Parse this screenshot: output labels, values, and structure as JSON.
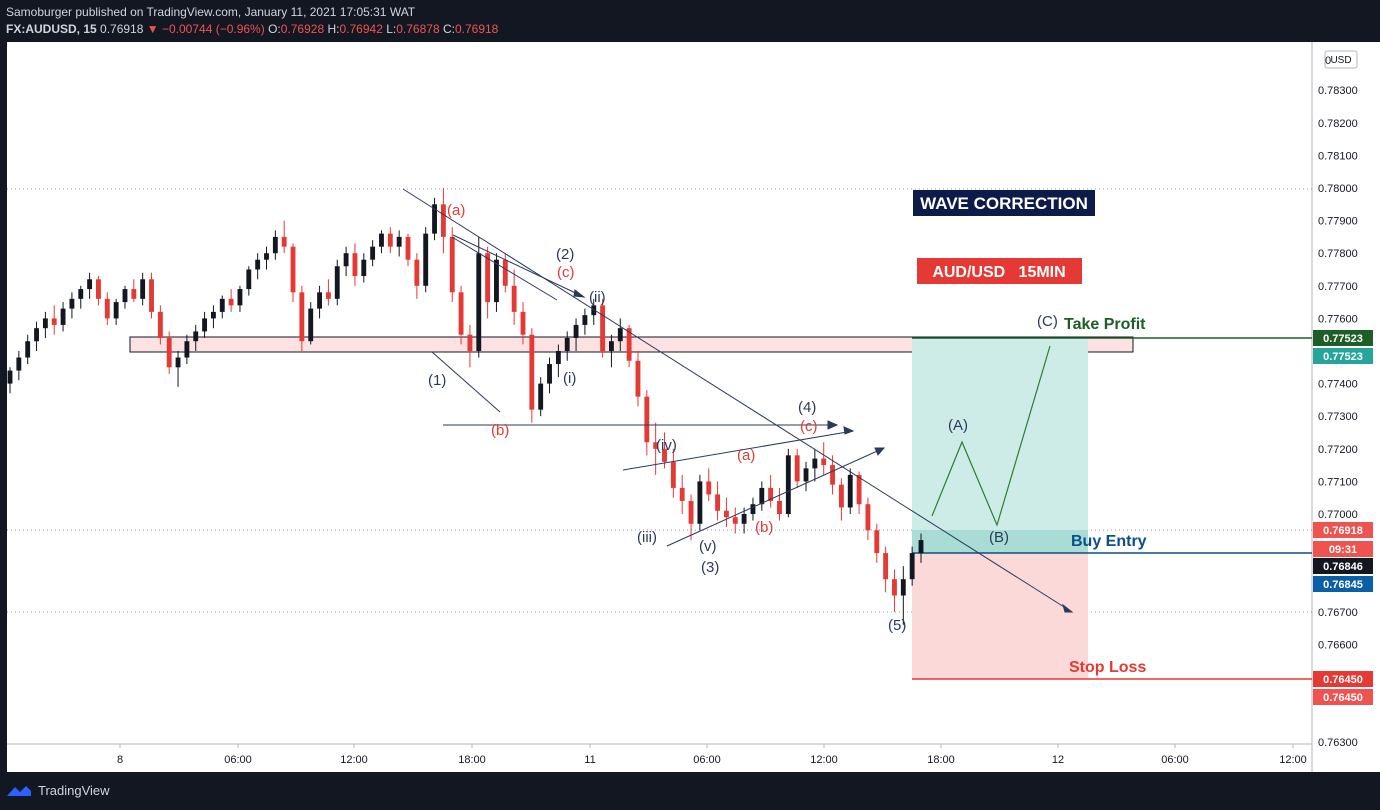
{
  "header": {
    "publisher": "Samoburger published on TradingView.com, January 11, 2021 17:05:31 WAT",
    "symbol": "FX:AUDUSD, 15",
    "last": "0.76918",
    "change": "▼ −0.00744 (−0.96%)",
    "o_label": "O:",
    "o": "0.76928",
    "h_label": "H:",
    "h": "0.76942",
    "l_label": "L:",
    "l": "0.76878",
    "c_label": "C:",
    "c": "0.76918"
  },
  "footer": {
    "brand": "TradingView"
  },
  "labels": {
    "title": "WAVE CORRECTION",
    "pair": "AUD/USD   15MIN",
    "take_profit": "Take Profit",
    "buy_entry": "Buy Entry",
    "stop_loss": "Stop Loss",
    "currency": "USD"
  },
  "chart_data": {
    "type": "candlestick",
    "symbol": "FX:AUDUSD",
    "timeframe": "15",
    "x_ticks": [
      "8",
      "06:00",
      "12:00",
      "18:00",
      "11",
      "06:00",
      "12:00",
      "18:00",
      "12",
      "06:00",
      "12:00"
    ],
    "y_ticks": [
      "0.78300",
      "0.78200",
      "0.78100",
      "0.78000",
      "0.77900",
      "0.77800",
      "0.77700",
      "0.77600",
      "0.77400",
      "0.77300",
      "0.77200",
      "0.77100",
      "0.77000",
      "0.76700",
      "0.76600",
      "0.76500",
      "0.76300"
    ],
    "ylim": [
      0.7625,
      0.7845
    ],
    "levels": {
      "take_profit": 0.77523,
      "entry": 0.76846,
      "stop_loss": 0.7645,
      "last": 0.76918
    },
    "axis_badges": [
      {
        "text": "0.77523",
        "color": "#1e5d25"
      },
      {
        "text": "0.77523",
        "color": "#26a69a"
      },
      {
        "text": "0.76918",
        "color": "#ef5350"
      },
      {
        "text": "09:31",
        "color": "#ef5350"
      },
      {
        "text": "0.76846",
        "color": "#131722"
      },
      {
        "text": "0.76845",
        "color": "#0b5fa5"
      },
      {
        "text": "0.76450",
        "color": "#e53935"
      },
      {
        "text": "0.76450",
        "color": "#ef5350"
      }
    ],
    "wave_labels": [
      {
        "text": "(a)",
        "color": "#e53935"
      },
      {
        "text": "(2)",
        "color": "#2a3a5c"
      },
      {
        "text": "(c)",
        "color": "#e53935"
      },
      {
        "text": "(ii)",
        "color": "#2a3a5c"
      },
      {
        "text": "(1)",
        "color": "#2a3a5c"
      },
      {
        "text": "(i)",
        "color": "#2a3a5c"
      },
      {
        "text": "(b)",
        "color": "#e53935"
      },
      {
        "text": "(4)",
        "color": "#2a3a5c"
      },
      {
        "text": "(c)",
        "color": "#e53935"
      },
      {
        "text": "(iv)",
        "color": "#2a3a5c"
      },
      {
        "text": "(a)",
        "color": "#e53935"
      },
      {
        "text": "(iii)",
        "color": "#2a3a5c"
      },
      {
        "text": "(v)",
        "color": "#2a3a5c"
      },
      {
        "text": "(b)",
        "color": "#e53935"
      },
      {
        "text": "(3)",
        "color": "#2a3a5c"
      },
      {
        "text": "(5)",
        "color": "#2a3a5c"
      },
      {
        "text": "(A)",
        "color": "#2a3a5c"
      },
      {
        "text": "(B)",
        "color": "#2a3a5c"
      },
      {
        "text": "(C)",
        "color": "#2a3a5c"
      }
    ],
    "candles": [
      [
        0.774,
        0.7745,
        0.7737,
        0.7744
      ],
      [
        0.7744,
        0.775,
        0.7741,
        0.7748
      ],
      [
        0.7748,
        0.7755,
        0.7746,
        0.7753
      ],
      [
        0.7753,
        0.7759,
        0.775,
        0.7757
      ],
      [
        0.7757,
        0.7762,
        0.7754,
        0.776
      ],
      [
        0.776,
        0.7764,
        0.7755,
        0.7758
      ],
      [
        0.7758,
        0.7765,
        0.7756,
        0.7763
      ],
      [
        0.7763,
        0.7768,
        0.776,
        0.7766
      ],
      [
        0.7766,
        0.777,
        0.7763,
        0.7769
      ],
      [
        0.7769,
        0.7774,
        0.7766,
        0.7772
      ],
      [
        0.7772,
        0.7773,
        0.7764,
        0.7766
      ],
      [
        0.7766,
        0.7768,
        0.7758,
        0.776
      ],
      [
        0.776,
        0.7766,
        0.7758,
        0.7765
      ],
      [
        0.7765,
        0.777,
        0.7763,
        0.7769
      ],
      [
        0.7769,
        0.7772,
        0.7765,
        0.7766
      ],
      [
        0.7766,
        0.7774,
        0.7764,
        0.7772
      ],
      [
        0.7772,
        0.7774,
        0.776,
        0.7762
      ],
      [
        0.7762,
        0.7764,
        0.7752,
        0.7754
      ],
      [
        0.7754,
        0.7756,
        0.7743,
        0.7745
      ],
      [
        0.7745,
        0.775,
        0.7739,
        0.7748
      ],
      [
        0.7748,
        0.7755,
        0.7746,
        0.7753
      ],
      [
        0.7753,
        0.7758,
        0.775,
        0.7756
      ],
      [
        0.7756,
        0.7762,
        0.7754,
        0.776
      ],
      [
        0.776,
        0.7764,
        0.7757,
        0.7762
      ],
      [
        0.7762,
        0.7767,
        0.776,
        0.7766
      ],
      [
        0.7766,
        0.7769,
        0.7762,
        0.7764
      ],
      [
        0.7764,
        0.777,
        0.7762,
        0.7769
      ],
      [
        0.7769,
        0.7776,
        0.7767,
        0.7775
      ],
      [
        0.7775,
        0.778,
        0.7772,
        0.7778
      ],
      [
        0.7778,
        0.7782,
        0.7775,
        0.778
      ],
      [
        0.778,
        0.7787,
        0.7778,
        0.7785
      ],
      [
        0.7785,
        0.779,
        0.778,
        0.7782
      ],
      [
        0.7782,
        0.7783,
        0.7765,
        0.7768
      ],
      [
        0.7768,
        0.777,
        0.775,
        0.7753
      ],
      [
        0.7753,
        0.7765,
        0.7752,
        0.7763
      ],
      [
        0.7763,
        0.777,
        0.776,
        0.7768
      ],
      [
        0.7768,
        0.7772,
        0.7764,
        0.7766
      ],
      [
        0.7766,
        0.7778,
        0.7764,
        0.7776
      ],
      [
        0.7776,
        0.7782,
        0.7773,
        0.778
      ],
      [
        0.778,
        0.7783,
        0.777,
        0.7773
      ],
      [
        0.7773,
        0.778,
        0.7771,
        0.7778
      ],
      [
        0.7778,
        0.7784,
        0.7776,
        0.7782
      ],
      [
        0.7782,
        0.7787,
        0.778,
        0.7786
      ],
      [
        0.7786,
        0.7788,
        0.778,
        0.7782
      ],
      [
        0.7782,
        0.7787,
        0.7779,
        0.7785
      ],
      [
        0.7785,
        0.7786,
        0.7776,
        0.7778
      ],
      [
        0.7778,
        0.778,
        0.7766,
        0.777
      ],
      [
        0.777,
        0.7788,
        0.7768,
        0.7786
      ],
      [
        0.7786,
        0.7797,
        0.7784,
        0.7795
      ],
      [
        0.7795,
        0.78,
        0.778,
        0.7785
      ],
      [
        0.7785,
        0.7788,
        0.7765,
        0.7768
      ],
      [
        0.7768,
        0.777,
        0.7752,
        0.7755
      ],
      [
        0.7755,
        0.7758,
        0.7745,
        0.775
      ],
      [
        0.775,
        0.7785,
        0.7748,
        0.778
      ],
      [
        0.778,
        0.7782,
        0.776,
        0.7765
      ],
      [
        0.7765,
        0.778,
        0.7762,
        0.7778
      ],
      [
        0.7778,
        0.778,
        0.7768,
        0.777
      ],
      [
        0.777,
        0.7775,
        0.7758,
        0.7762
      ],
      [
        0.7762,
        0.7765,
        0.7752,
        0.7755
      ],
      [
        0.7755,
        0.7757,
        0.7728,
        0.7732
      ],
      [
        0.7732,
        0.7742,
        0.773,
        0.774
      ],
      [
        0.774,
        0.7748,
        0.7737,
        0.7746
      ],
      [
        0.7746,
        0.7752,
        0.7742,
        0.775
      ],
      [
        0.775,
        0.7756,
        0.7747,
        0.7754
      ],
      [
        0.7754,
        0.776,
        0.775,
        0.7758
      ],
      [
        0.7758,
        0.7763,
        0.7755,
        0.7761
      ],
      [
        0.7761,
        0.7766,
        0.7758,
        0.7764
      ],
      [
        0.7764,
        0.7766,
        0.7748,
        0.775
      ],
      [
        0.775,
        0.7755,
        0.7745,
        0.7753
      ],
      [
        0.7753,
        0.776,
        0.775,
        0.7757
      ],
      [
        0.7757,
        0.7758,
        0.7745,
        0.7747
      ],
      [
        0.7747,
        0.775,
        0.7733,
        0.7736
      ],
      [
        0.7736,
        0.7738,
        0.7718,
        0.7722
      ],
      [
        0.7722,
        0.7728,
        0.7712,
        0.772
      ],
      [
        0.772,
        0.7725,
        0.7714,
        0.7716
      ],
      [
        0.7716,
        0.772,
        0.7705,
        0.7708
      ],
      [
        0.7708,
        0.7712,
        0.77,
        0.7704
      ],
      [
        0.7704,
        0.7706,
        0.7692,
        0.7697
      ],
      [
        0.7697,
        0.7712,
        0.7695,
        0.771
      ],
      [
        0.771,
        0.7714,
        0.7704,
        0.7706
      ],
      [
        0.7706,
        0.771,
        0.7698,
        0.7701
      ],
      [
        0.7701,
        0.7705,
        0.7696,
        0.7699
      ],
      [
        0.7699,
        0.7702,
        0.7694,
        0.7697
      ],
      [
        0.7697,
        0.7702,
        0.7694,
        0.77
      ],
      [
        0.77,
        0.7705,
        0.7698,
        0.7703
      ],
      [
        0.7703,
        0.771,
        0.7701,
        0.7708
      ],
      [
        0.7708,
        0.7712,
        0.7702,
        0.7704
      ],
      [
        0.7704,
        0.7708,
        0.7698,
        0.77
      ],
      [
        0.77,
        0.772,
        0.7699,
        0.7718
      ],
      [
        0.7718,
        0.772,
        0.7708,
        0.771
      ],
      [
        0.771,
        0.7716,
        0.7707,
        0.7714
      ],
      [
        0.7714,
        0.772,
        0.771,
        0.7717
      ],
      [
        0.7717,
        0.7722,
        0.7712,
        0.7715
      ],
      [
        0.7715,
        0.7718,
        0.7706,
        0.7709
      ],
      [
        0.7709,
        0.7711,
        0.7698,
        0.7702
      ],
      [
        0.7702,
        0.7714,
        0.77,
        0.7712
      ],
      [
        0.7712,
        0.7713,
        0.77,
        0.7703
      ],
      [
        0.7703,
        0.7705,
        0.7692,
        0.7695
      ],
      [
        0.7695,
        0.7697,
        0.7685,
        0.7688
      ],
      [
        0.7688,
        0.769,
        0.7676,
        0.768
      ],
      [
        0.768,
        0.7683,
        0.767,
        0.7675
      ],
      [
        0.7675,
        0.7684,
        0.7666,
        0.768
      ],
      [
        0.768,
        0.769,
        0.7678,
        0.7688
      ],
      [
        0.7688,
        0.7694,
        0.7685,
        0.7692
      ]
    ]
  }
}
